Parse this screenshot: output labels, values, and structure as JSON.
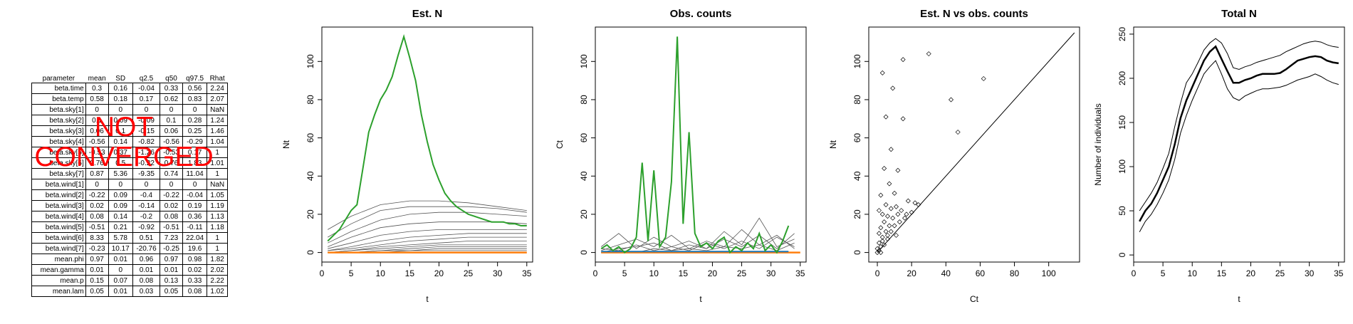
{
  "table": {
    "headers": [
      "parameter",
      "mean",
      "SD",
      "q2.5",
      "q50",
      "q97.5",
      "Rhat"
    ],
    "rows": [
      [
        "beta.time",
        "0.3",
        "0.16",
        "-0.04",
        "0.33",
        "0.56",
        "2.24"
      ],
      [
        "beta.temp",
        "0.58",
        "0.18",
        "0.17",
        "0.62",
        "0.83",
        "2.07"
      ],
      [
        "beta.sky[1]",
        "0",
        "0",
        "0",
        "0",
        "0",
        "NaN"
      ],
      [
        "beta.sky[2]",
        "0.1",
        "0.09",
        "-0.09",
        "0.1",
        "0.28",
        "1.24"
      ],
      [
        "beta.sky[3]",
        "0.06",
        "0.1",
        "-0.15",
        "0.06",
        "0.25",
        "1.46"
      ],
      [
        "beta.sky[4]",
        "-0.56",
        "0.14",
        "-0.82",
        "-0.56",
        "-0.29",
        "1.04"
      ],
      [
        "beta.sky[5]",
        "-0.53",
        "0.37",
        "-1.26",
        "-0.53",
        "0.17",
        "1"
      ],
      [
        "beta.sky[6]",
        "0.76",
        "0.5",
        "-0.22",
        "0.76",
        "1.83",
        "1.01"
      ],
      [
        "beta.sky[7]",
        "0.87",
        "5.36",
        "-9.35",
        "0.74",
        "11.04",
        "1"
      ],
      [
        "beta.wind[1]",
        "0",
        "0",
        "0",
        "0",
        "0",
        "NaN"
      ],
      [
        "beta.wind[2]",
        "-0.22",
        "0.09",
        "-0.4",
        "-0.22",
        "-0.04",
        "1.05"
      ],
      [
        "beta.wind[3]",
        "0.02",
        "0.09",
        "-0.14",
        "0.02",
        "0.19",
        "1.19"
      ],
      [
        "beta.wind[4]",
        "0.08",
        "0.14",
        "-0.2",
        "0.08",
        "0.36",
        "1.13"
      ],
      [
        "beta.wind[5]",
        "-0.51",
        "0.21",
        "-0.92",
        "-0.51",
        "-0.11",
        "1.18"
      ],
      [
        "beta.wind[6]",
        "8.33",
        "5.78",
        "0.51",
        "7.23",
        "22.04",
        "1"
      ],
      [
        "beta.wind[7]",
        "-0.23",
        "10.17",
        "-20.76",
        "-0.25",
        "19.6",
        "1"
      ],
      [
        "mean.phi",
        "0.97",
        "0.01",
        "0.96",
        "0.97",
        "0.98",
        "1.82"
      ],
      [
        "mean.gamma",
        "0.01",
        "0",
        "0.01",
        "0.01",
        "0.02",
        "2.02"
      ],
      [
        "mean.p",
        "0.15",
        "0.07",
        "0.08",
        "0.13",
        "0.33",
        "2.22"
      ],
      [
        "mean.lam",
        "0.05",
        "0.01",
        "0.03",
        "0.05",
        "0.08",
        "1.02"
      ]
    ],
    "overlay": [
      "NOT",
      "CONVERGED"
    ]
  },
  "colors": {
    "overlay": "#ff0000",
    "highlight": "#2ca02c",
    "orange": "#ff7f0e",
    "blue": "#1f77b4",
    "grey": "#555555"
  },
  "chart_data": [
    {
      "type": "line",
      "title": "Est. N",
      "xlabel": "t",
      "ylabel": "Nt",
      "xlim": [
        0,
        36
      ],
      "ylim": [
        -5,
        118
      ],
      "xticks": [
        0,
        5,
        10,
        15,
        20,
        25,
        30,
        35
      ],
      "yticks": [
        0,
        20,
        40,
        60,
        80,
        100
      ],
      "highlight": {
        "x": [
          1,
          2,
          3,
          4,
          5,
          6,
          7,
          8,
          9,
          10,
          11,
          12,
          13,
          14,
          15,
          16,
          17,
          18,
          19,
          20,
          21,
          22,
          23,
          24,
          25,
          26,
          27,
          28,
          29,
          30,
          31,
          32,
          33,
          34,
          35
        ],
        "y": [
          6,
          9,
          12,
          17,
          22,
          25,
          44,
          63,
          72,
          80,
          85,
          92,
          103,
          113,
          102,
          90,
          72,
          58,
          46,
          38,
          31,
          27,
          24,
          22,
          20,
          19,
          18,
          17,
          16,
          16,
          16,
          15,
          15,
          14,
          14
        ]
      },
      "background": [
        {
          "x": [
            1,
            5,
            10,
            15,
            20,
            25,
            30,
            35
          ],
          "y": [
            12,
            19,
            25,
            27,
            27,
            26,
            24,
            22
          ]
        },
        {
          "x": [
            1,
            5,
            10,
            15,
            20,
            25,
            30,
            35
          ],
          "y": [
            8,
            15,
            22,
            24,
            24,
            24,
            23,
            21
          ]
        },
        {
          "x": [
            1,
            5,
            10,
            15,
            20,
            25,
            30,
            35
          ],
          "y": [
            5,
            11,
            17,
            20,
            21,
            21,
            20,
            19
          ]
        },
        {
          "x": [
            1,
            5,
            10,
            15,
            20,
            25,
            30,
            35
          ],
          "y": [
            3,
            8,
            13,
            15,
            16,
            16,
            16,
            15
          ]
        },
        {
          "x": [
            1,
            5,
            10,
            15,
            20,
            25,
            30,
            35
          ],
          "y": [
            2,
            5,
            9,
            11,
            12,
            12,
            12,
            12
          ]
        },
        {
          "x": [
            1,
            5,
            10,
            15,
            20,
            25,
            30,
            35
          ],
          "y": [
            1,
            3,
            6,
            8,
            9,
            10,
            10,
            10
          ]
        },
        {
          "x": [
            1,
            5,
            10,
            15,
            20,
            25,
            30,
            35
          ],
          "y": [
            1,
            2,
            4,
            6,
            7,
            8,
            8,
            8
          ]
        },
        {
          "x": [
            1,
            5,
            10,
            15,
            20,
            25,
            30,
            35
          ],
          "y": [
            0,
            1,
            3,
            4,
            5,
            6,
            6,
            6
          ]
        },
        {
          "x": [
            1,
            5,
            10,
            15,
            20,
            25,
            30,
            35
          ],
          "y": [
            0,
            1,
            2,
            3,
            4,
            4,
            4,
            4
          ]
        },
        {
          "x": [
            1,
            5,
            10,
            15,
            20,
            25,
            30,
            35
          ],
          "y": [
            0,
            0,
            1,
            2,
            3,
            3,
            3,
            3
          ]
        },
        {
          "x": [
            1,
            5,
            10,
            15,
            20,
            25,
            30,
            35
          ],
          "y": [
            0,
            0,
            1,
            1,
            2,
            2,
            2,
            2
          ]
        },
        {
          "x": [
            1,
            5,
            10,
            15,
            20,
            25,
            30,
            35
          ],
          "y": [
            0,
            0,
            0,
            1,
            1,
            1,
            1,
            1
          ]
        }
      ],
      "baseline": {
        "x": [
          1,
          35
        ],
        "y": [
          0,
          0
        ]
      }
    },
    {
      "type": "line",
      "title": "Obs. counts",
      "xlabel": "t",
      "ylabel": "Ct",
      "xlim": [
        0,
        36
      ],
      "ylim": [
        -5,
        118
      ],
      "xticks": [
        0,
        5,
        10,
        15,
        20,
        25,
        30,
        35
      ],
      "yticks": [
        0,
        20,
        40,
        60,
        80,
        100
      ],
      "highlight": {
        "x": [
          1,
          2,
          3,
          4,
          5,
          6,
          7,
          8,
          9,
          10,
          11,
          12,
          13,
          14,
          15,
          16,
          17,
          18,
          19,
          20,
          21,
          22,
          23,
          24,
          25,
          26,
          27,
          28,
          29,
          30,
          31,
          32,
          33
        ],
        "y": [
          2,
          4,
          1,
          3,
          0,
          2,
          8,
          47,
          6,
          43,
          3,
          8,
          37,
          113,
          15,
          63,
          10,
          3,
          5,
          2,
          6,
          8,
          0,
          3,
          1,
          5,
          2,
          10,
          1,
          4,
          0,
          6,
          14
        ]
      },
      "background": [
        {
          "x": [
            1,
            4,
            7,
            10,
            13,
            16,
            19,
            22,
            25,
            28,
            31,
            34
          ],
          "y": [
            3,
            10,
            2,
            8,
            3,
            6,
            2,
            11,
            4,
            18,
            3,
            7
          ]
        },
        {
          "x": [
            1,
            4,
            7,
            10,
            13,
            16,
            19,
            22,
            25,
            28,
            31,
            34
          ],
          "y": [
            1,
            4,
            7,
            3,
            9,
            2,
            6,
            3,
            12,
            4,
            9,
            2
          ]
        },
        {
          "x": [
            1,
            4,
            7,
            10,
            13,
            16,
            19,
            22,
            25,
            28,
            31,
            34
          ],
          "y": [
            0,
            2,
            3,
            5,
            1,
            4,
            2,
            7,
            3,
            9,
            2,
            10
          ]
        },
        {
          "x": [
            1,
            4,
            7,
            10,
            13,
            16,
            19,
            22,
            25,
            28,
            31,
            34
          ],
          "y": [
            2,
            1,
            4,
            1,
            3,
            1,
            5,
            2,
            6,
            2,
            8,
            3
          ]
        },
        {
          "x": [
            1,
            4,
            7,
            10,
            13,
            16,
            19,
            22,
            25,
            28,
            31,
            34
          ],
          "y": [
            0,
            1,
            0,
            2,
            1,
            2,
            1,
            3,
            2,
            4,
            1,
            5
          ]
        }
      ],
      "orange": {
        "x": [
          1,
          35
        ],
        "y": [
          0,
          0
        ]
      },
      "blue": {
        "x": [
          1,
          33
        ],
        "y": [
          0.5,
          0.5
        ]
      }
    },
    {
      "type": "scatter",
      "title": "Est. N vs obs. counts",
      "xlabel": "Ct",
      "ylabel": "Nt",
      "xlim": [
        -5,
        118
      ],
      "ylim": [
        -5,
        118
      ],
      "xticks": [
        0,
        20,
        40,
        60,
        80,
        100
      ],
      "yticks": [
        0,
        20,
        40,
        60,
        80,
        100
      ],
      "points": [
        [
          3,
          94
        ],
        [
          9,
          86
        ],
        [
          15,
          101
        ],
        [
          30,
          104
        ],
        [
          62,
          91
        ],
        [
          43,
          80
        ],
        [
          47,
          63
        ],
        [
          5,
          71
        ],
        [
          15,
          70
        ],
        [
          8,
          54
        ],
        [
          4,
          44
        ],
        [
          12,
          43
        ],
        [
          7,
          36
        ],
        [
          2,
          30
        ],
        [
          10,
          31
        ],
        [
          5,
          25
        ],
        [
          8,
          23
        ],
        [
          11,
          24
        ],
        [
          14,
          22
        ],
        [
          18,
          27
        ],
        [
          22,
          26
        ],
        [
          1,
          22
        ],
        [
          3,
          20
        ],
        [
          6,
          19
        ],
        [
          9,
          18
        ],
        [
          12,
          20
        ],
        [
          4,
          16
        ],
        [
          7,
          14
        ],
        [
          2,
          13
        ],
        [
          5,
          11
        ],
        [
          1,
          10
        ],
        [
          3,
          8
        ],
        [
          6,
          7
        ],
        [
          1,
          5
        ],
        [
          2,
          3
        ],
        [
          4,
          4
        ],
        [
          1,
          1
        ],
        [
          0,
          2
        ],
        [
          0,
          0
        ],
        [
          2,
          0
        ],
        [
          16,
          18
        ],
        [
          20,
          21
        ],
        [
          10,
          14
        ],
        [
          6,
          9
        ],
        [
          8,
          11
        ],
        [
          3,
          6
        ],
        [
          13,
          16
        ],
        [
          24,
          25
        ],
        [
          17,
          20
        ],
        [
          11,
          9
        ]
      ],
      "refline": {
        "x": [
          0,
          115
        ],
        "y": [
          0,
          115
        ]
      }
    },
    {
      "type": "line",
      "title": "Total N",
      "xlabel": "t",
      "ylabel": "Number of individuals",
      "xlim": [
        0,
        36
      ],
      "ylim": [
        -8,
        258
      ],
      "xticks": [
        0,
        5,
        10,
        15,
        20,
        25,
        30,
        35
      ],
      "yticks": [
        0,
        50,
        100,
        150,
        200,
        250
      ],
      "x": [
        1,
        2,
        3,
        4,
        5,
        6,
        7,
        8,
        9,
        10,
        11,
        12,
        13,
        14,
        15,
        16,
        17,
        18,
        19,
        20,
        21,
        22,
        23,
        24,
        25,
        26,
        27,
        28,
        29,
        30,
        31,
        32,
        33,
        34,
        35
      ],
      "series": [
        {
          "name": "",
          "role": "mean",
          "values": [
            38,
            50,
            58,
            70,
            85,
            100,
            125,
            155,
            175,
            190,
            205,
            220,
            230,
            236,
            222,
            208,
            195,
            195,
            198,
            200,
            203,
            205,
            205,
            205,
            206,
            210,
            215,
            220,
            222,
            224,
            225,
            224,
            220,
            218,
            217
          ]
        },
        {
          "name": "",
          "role": "upper",
          "values": [
            50,
            60,
            70,
            82,
            98,
            115,
            145,
            172,
            195,
            205,
            218,
            232,
            240,
            245,
            240,
            228,
            212,
            210,
            213,
            215,
            218,
            220,
            222,
            224,
            226,
            230,
            233,
            236,
            239,
            241,
            242,
            241,
            238,
            236,
            235
          ]
        },
        {
          "name": "",
          "role": "lower",
          "values": [
            26,
            38,
            46,
            57,
            70,
            85,
            108,
            138,
            158,
            175,
            190,
            205,
            213,
            220,
            205,
            188,
            178,
            175,
            180,
            183,
            186,
            188,
            188,
            189,
            190,
            192,
            195,
            198,
            200,
            202,
            205,
            202,
            198,
            195,
            193
          ]
        }
      ]
    }
  ]
}
